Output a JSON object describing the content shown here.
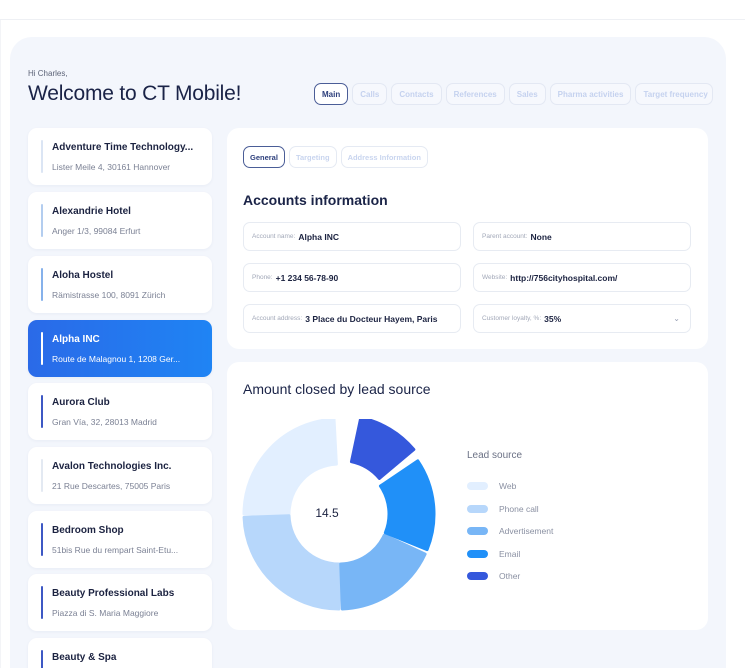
{
  "header": {
    "greeting": "Hi Charles,",
    "title": "Welcome to CT Mobile!"
  },
  "tabs": [
    {
      "label": "Main",
      "active": true
    },
    {
      "label": "Calls",
      "active": false
    },
    {
      "label": "Contacts",
      "active": false
    },
    {
      "label": "References",
      "active": false
    },
    {
      "label": "Sales",
      "active": false
    },
    {
      "label": "Pharma activities",
      "active": false
    },
    {
      "label": "Target frequency",
      "active": false
    }
  ],
  "accounts": [
    {
      "name": "Adventure Time Technology...",
      "address": "Lister Meile 4, 30161 Hannover",
      "accent": "#dbe5f4"
    },
    {
      "name": "Alexandrie Hotel",
      "address": "Anger 1/3, 99084 Erfurt",
      "accent": "#b3cdef"
    },
    {
      "name": "Aloha Hostel",
      "address": "Rämistrasse 100, 8091 Zürich",
      "accent": "#86b1eb"
    },
    {
      "name": "Alpha INC",
      "address": "Route de Malagnou 1, 1208 Ger...",
      "accent": "#ffffff",
      "selected": true
    },
    {
      "name": "Aurora Club",
      "address": "Gran Vía, 32, 28013 Madrid",
      "accent": "#3d58c4"
    },
    {
      "name": "Avalon Technologies Inc.",
      "address": "21 Rue Descartes, 75005 Paris",
      "accent": "#e3e9f2"
    },
    {
      "name": "Bedroom Shop",
      "address": "51bis Rue du rempart Saint-Etu...",
      "accent": "#3d58c4"
    },
    {
      "name": "Beauty Professional Labs",
      "address": "Piazza di S. Maria Maggiore",
      "accent": "#3d58c4"
    },
    {
      "name": "Beauty & Spa",
      "address": "",
      "accent": "#3d58c4"
    }
  ],
  "account_info": {
    "subtabs": [
      {
        "label": "General",
        "active": true
      },
      {
        "label": "Targeting",
        "active": false
      },
      {
        "label": "Address Information",
        "active": false
      }
    ],
    "section_title": "Accounts information",
    "fields": {
      "account_name": {
        "label": "Account name:",
        "value": "Alpha INC"
      },
      "parent_account": {
        "label": "Parent account:",
        "value": "None"
      },
      "phone": {
        "label": "Phone:",
        "value": "+1 234 56-78-90"
      },
      "website": {
        "label": "Website:",
        "value": "http://756cityhospital.com/"
      },
      "account_address": {
        "label": "Account address:",
        "value": "3 Place du Docteur Hayem, Paris"
      },
      "customer_loyalty": {
        "label": "Customer loyalty, %:",
        "value": "35%"
      }
    }
  },
  "chart": {
    "title": "Amount closed by lead source",
    "center_value": "14.5",
    "legend_title": "Lead source"
  },
  "chart_data": {
    "type": "pie",
    "title": "Amount closed by lead source",
    "center_label": "14.5",
    "legend_title": "Lead source",
    "legend_position": "right",
    "categories": [
      "Web",
      "Phone call",
      "Advertisement",
      "Email",
      "Other"
    ],
    "values": [
      25,
      25,
      19,
      17,
      14
    ],
    "colors": [
      "#e2efff",
      "#b7d7fb",
      "#78b6f6",
      "#2090f8",
      "#3558dc"
    ],
    "start_angles_deg": [
      270,
      180,
      115,
      56,
      12
    ],
    "end_angles_deg": [
      357,
      268,
      178,
      112,
      50
    ]
  },
  "icons": {
    "dropdown": "chevron-down-icon",
    "dropdown_glyph": "⌄"
  }
}
